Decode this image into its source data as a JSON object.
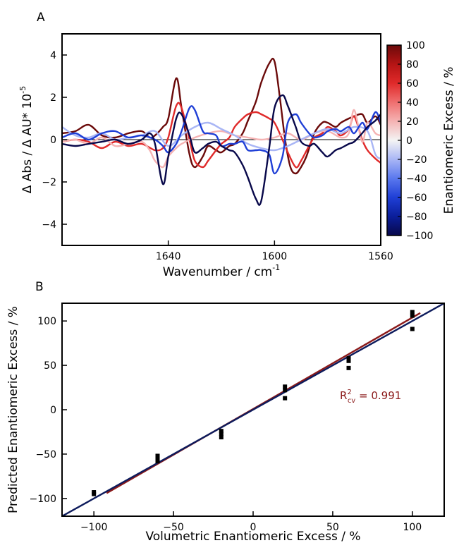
{
  "colors": {
    "axis": "#000000",
    "fit_line": "#8b1a1a",
    "ideal_line": "#0d1b5c",
    "markers": "#000000",
    "annotation": "#8b1a1a",
    "colormap": [
      "#08084a",
      "#0b1e9a",
      "#1f3fd6",
      "#5a78ee",
      "#a9b6f5",
      "#f4f4f4",
      "#f5b3b3",
      "#ef6f6f",
      "#e02a2a",
      "#b51414",
      "#6b0a0a"
    ]
  },
  "chart_data": [
    {
      "id": "A",
      "type": "line",
      "panel_label": "A",
      "xlabel": "Wavenumber / cm",
      "xlabel_sup": "-1",
      "ylabel": "Δ Abs / Δ AU* 10",
      "ylabel_sup": "-5",
      "xlim": [
        1680,
        1560
      ],
      "ylim": [
        -5,
        5
      ],
      "x_inverted": true,
      "x_ticks": [
        1640,
        1600,
        1560
      ],
      "y_ticks": [
        -4,
        -2,
        0,
        2,
        4
      ],
      "colorbar": {
        "label": "Enantiomeric Excess / %",
        "range": [
          -100,
          100
        ],
        "ticks": [
          100,
          80,
          60,
          40,
          20,
          0,
          -20,
          -40,
          -60,
          -80,
          -100
        ]
      },
      "series": [
        {
          "ee": 100,
          "color": "#6b0a0a",
          "x": [
            1680,
            1675,
            1670,
            1665,
            1660,
            1655,
            1650,
            1647,
            1645,
            1642,
            1640,
            1637,
            1635,
            1632,
            1630,
            1627,
            1625,
            1622,
            1620,
            1617,
            1615,
            1612,
            1610,
            1607,
            1605,
            1602,
            1600,
            1598,
            1596,
            1594,
            1592,
            1590,
            1588,
            1585,
            1582,
            1580,
            1577,
            1575,
            1572,
            1570,
            1567,
            1565,
            1562,
            1560
          ],
          "y": [
            0.3,
            0.4,
            0.7,
            0.2,
            0.1,
            0.3,
            0.4,
            0.1,
            0.2,
            0.6,
            1.0,
            2.9,
            1.5,
            -0.7,
            -1.3,
            -0.8,
            -0.3,
            -0.5,
            -0.6,
            -0.3,
            -0.2,
            0.3,
            0.9,
            1.8,
            2.7,
            3.6,
            3.7,
            2.0,
            0.0,
            -1.3,
            -1.6,
            -1.3,
            -0.8,
            0.3,
            0.8,
            0.8,
            0.6,
            0.8,
            1.0,
            1.1,
            1.2,
            0.8,
            1.1,
            0.7
          ]
        },
        {
          "ee": 60,
          "color": "#e02a2a",
          "x": [
            1680,
            1675,
            1670,
            1665,
            1660,
            1655,
            1650,
            1645,
            1642,
            1640,
            1637,
            1635,
            1632,
            1630,
            1627,
            1625,
            1622,
            1620,
            1617,
            1615,
            1612,
            1610,
            1607,
            1605,
            1602,
            1600,
            1597,
            1595,
            1592,
            1590,
            1587,
            1585,
            1582,
            1580,
            1577,
            1575,
            1572,
            1570,
            1567,
            1565,
            1562,
            1560
          ],
          "y": [
            -0.1,
            0.0,
            -0.1,
            -0.4,
            -0.1,
            -0.3,
            -0.2,
            -0.5,
            -0.4,
            0.1,
            1.6,
            1.5,
            0.0,
            -1.0,
            -1.3,
            -1.0,
            -0.5,
            -0.2,
            0.1,
            0.6,
            1.0,
            1.2,
            1.3,
            1.2,
            1.0,
            0.8,
            0.0,
            -0.6,
            -1.3,
            -1.0,
            -0.3,
            0.1,
            0.3,
            0.6,
            0.4,
            0.2,
            0.5,
            1.1,
            0.0,
            -0.5,
            -0.9,
            -1.1
          ]
        },
        {
          "ee": 20,
          "color": "#f5b3b3",
          "x": [
            1680,
            1675,
            1670,
            1665,
            1660,
            1655,
            1650,
            1647,
            1645,
            1642,
            1640,
            1637,
            1635,
            1630,
            1625,
            1620,
            1615,
            1610,
            1605,
            1600,
            1595,
            1590,
            1585,
            1580,
            1575,
            1572,
            1570,
            1567,
            1565,
            1562,
            1560
          ],
          "y": [
            -0.1,
            0.0,
            -0.2,
            0.1,
            -0.3,
            -0.2,
            -0.1,
            -0.5,
            -1.0,
            -1.3,
            -0.8,
            -0.4,
            -0.2,
            0.1,
            0.3,
            0.4,
            0.2,
            0.1,
            0.0,
            0.1,
            0.3,
            0.0,
            0.3,
            0.4,
            0.1,
            0.3,
            1.4,
            -0.1,
            0.8,
            0.3,
            0.2
          ]
        },
        {
          "ee": -20,
          "color": "#a9b6f5",
          "x": [
            1680,
            1675,
            1670,
            1665,
            1660,
            1655,
            1650,
            1645,
            1640,
            1635,
            1630,
            1625,
            1620,
            1615,
            1610,
            1605,
            1600,
            1595,
            1590,
            1585,
            1580,
            1575,
            1570,
            1565,
            1562,
            1560
          ],
          "y": [
            0.6,
            0.2,
            0.1,
            0.3,
            0.0,
            0.1,
            0.2,
            0.4,
            -0.3,
            0.2,
            0.6,
            0.8,
            0.5,
            0.2,
            -0.2,
            -0.4,
            -0.5,
            -0.3,
            0.0,
            0.3,
            0.5,
            0.3,
            0.6,
            0.4,
            -0.7,
            -0.9
          ]
        },
        {
          "ee": -60,
          "color": "#1f3fd6",
          "x": [
            1680,
            1675,
            1670,
            1665,
            1660,
            1655,
            1650,
            1645,
            1642,
            1640,
            1637,
            1635,
            1632,
            1630,
            1627,
            1625,
            1622,
            1620,
            1617,
            1615,
            1612,
            1610,
            1607,
            1605,
            1602,
            1600,
            1597,
            1595,
            1592,
            1590,
            1587,
            1585,
            1582,
            1580,
            1577,
            1575,
            1572,
            1570,
            1567,
            1565,
            1562,
            1560
          ],
          "y": [
            0.1,
            0.3,
            0.0,
            0.3,
            0.4,
            0.1,
            0.2,
            0.0,
            -0.3,
            -0.6,
            -0.2,
            0.4,
            1.5,
            1.4,
            0.4,
            0.3,
            0.2,
            -0.3,
            -0.2,
            -0.2,
            -0.1,
            -0.5,
            -0.5,
            -0.5,
            -0.7,
            -1.6,
            -0.8,
            0.8,
            1.2,
            0.8,
            0.3,
            0.1,
            0.2,
            0.4,
            0.5,
            0.4,
            0.6,
            0.3,
            0.8,
            0.5,
            1.3,
            0.8
          ]
        },
        {
          "ee": -100,
          "color": "#08084a",
          "x": [
            1680,
            1675,
            1670,
            1665,
            1660,
            1655,
            1650,
            1647,
            1645,
            1642,
            1640,
            1637,
            1635,
            1632,
            1630,
            1627,
            1625,
            1622,
            1620,
            1617,
            1615,
            1612,
            1610,
            1607,
            1605,
            1602,
            1600,
            1597,
            1595,
            1592,
            1590,
            1587,
            1585,
            1582,
            1580,
            1577,
            1575,
            1572,
            1570,
            1567,
            1565,
            1562,
            1560
          ],
          "y": [
            -0.2,
            -0.3,
            -0.2,
            -0.1,
            0.0,
            -0.2,
            0.0,
            0.3,
            -0.2,
            -2.1,
            -0.8,
            1.0,
            1.2,
            0.2,
            -0.6,
            -0.4,
            -0.2,
            -0.1,
            -0.3,
            -0.5,
            -0.6,
            -1.2,
            -1.8,
            -2.8,
            -2.9,
            -0.4,
            1.5,
            2.1,
            1.6,
            0.6,
            -0.1,
            -0.3,
            -0.2,
            -0.6,
            -0.8,
            -0.5,
            -0.4,
            -0.2,
            -0.1,
            0.3,
            0.6,
            0.9,
            1.2
          ]
        }
      ]
    },
    {
      "id": "B",
      "type": "scatter",
      "panel_label": "B",
      "xlabel": "Volumetric Enantiomeric Excess / %",
      "ylabel": "Predicted Enantiomeric Excess / %",
      "xlim": [
        -120,
        120
      ],
      "ylim": [
        -120,
        120
      ],
      "x_ticks": [
        -100,
        -50,
        0,
        50,
        100
      ],
      "y_ticks": [
        -100,
        -50,
        0,
        50,
        100
      ],
      "points": {
        "x": [
          -100,
          -100,
          -60,
          -60,
          -60,
          -20,
          -20,
          -20,
          20,
          20,
          20,
          60,
          60,
          60,
          100,
          100,
          100
        ],
        "y": [
          -93,
          -95,
          -52,
          -56,
          -58,
          -24,
          -27,
          -31,
          26,
          22,
          13,
          58,
          55,
          47,
          110,
          106,
          91
        ]
      },
      "fit_line": {
        "x": [
          -92,
          105
        ],
        "y": [
          -94,
          109
        ]
      },
      "ideal_line": {
        "x": [
          -120,
          120
        ],
        "y": [
          -120,
          120
        ]
      },
      "annotation": {
        "base": "R",
        "sup": "2",
        "sub": "cv",
        "text": " = 0.991"
      }
    }
  ]
}
